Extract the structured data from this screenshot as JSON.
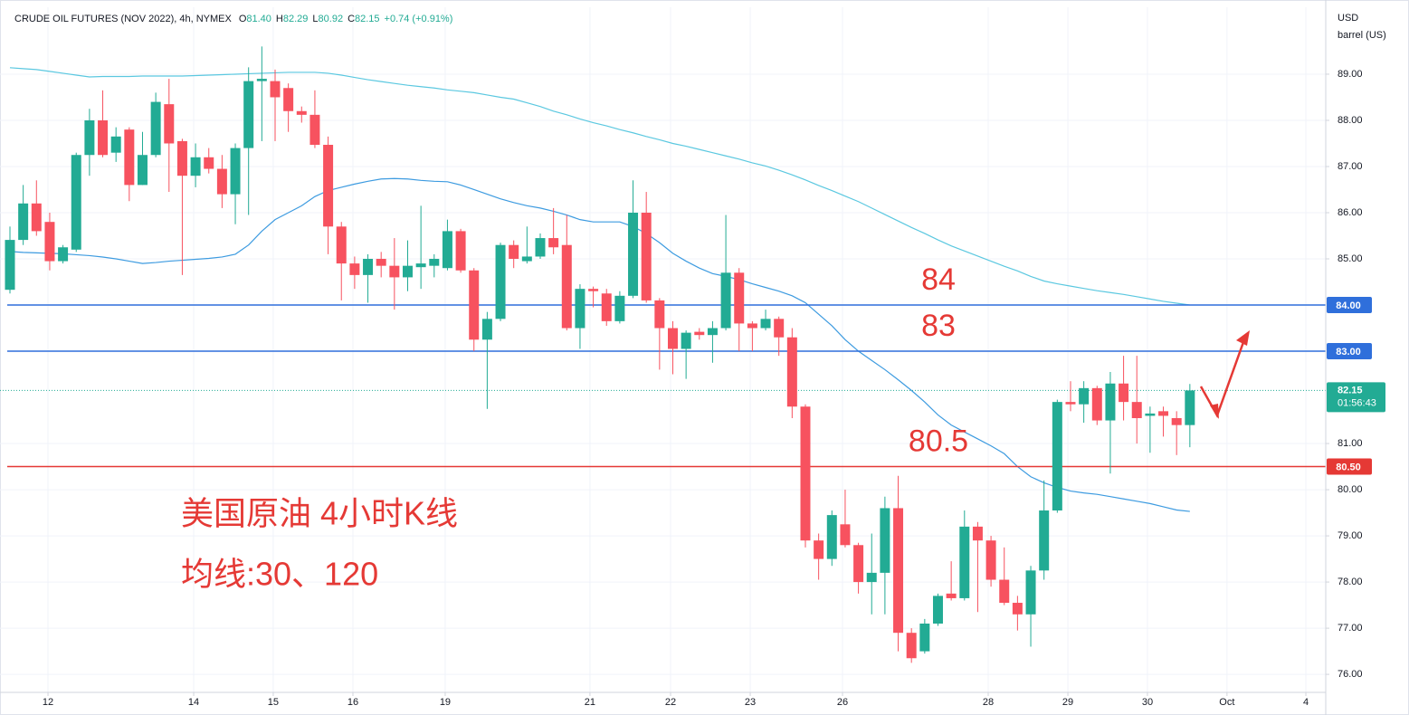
{
  "chart_data": {
    "type": "candlestick",
    "title": "CRUDE OIL FUTURES (NOV 2022), 4h, NYMEX",
    "ohlc_legend": [
      {
        "label": "O",
        "value": "81.40"
      },
      {
        "label": "H",
        "value": "82.29"
      },
      {
        "label": "L",
        "value": "80.92"
      },
      {
        "label": "C",
        "value": "82.15"
      }
    ],
    "change": "+0.74 (+0.91%)",
    "currency": "USD",
    "unit": "barrel (US)",
    "up_color": "#22ab94",
    "down_color": "#f7525f",
    "open": [
      84.33,
      85.41,
      86.2,
      85.8,
      84.95,
      85.2,
      87.25,
      88.0,
      87.3,
      87.8,
      86.6,
      87.25,
      88.35,
      87.55,
      86.8,
      87.2,
      86.95,
      86.4,
      87.4,
      88.85,
      88.85,
      88.7,
      88.2,
      88.12,
      87.47,
      85.7,
      84.9,
      84.65,
      85.0,
      84.85,
      84.6,
      84.82,
      84.85,
      84.8,
      85.6,
      84.75,
      83.25,
      83.7,
      85.3,
      84.95,
      85.05,
      85.45,
      85.3,
      83.5,
      84.35,
      84.25,
      83.65,
      84.2,
      86.0,
      84.1,
      83.5,
      83.05,
      83.42,
      83.35,
      83.5,
      84.7,
      83.6,
      83.5,
      83.7,
      83.3,
      81.8,
      78.9,
      78.5,
      79.25,
      78.8,
      78.0,
      78.2,
      79.6,
      76.9,
      76.5,
      77.1,
      77.75,
      77.65,
      79.2,
      78.9,
      78.05,
      77.55,
      77.3,
      78.25,
      79.55,
      81.9,
      81.85,
      82.2,
      81.5,
      82.3,
      81.9,
      81.6,
      81.7,
      81.55,
      81.4
    ],
    "high": [
      85.7,
      86.6,
      86.7,
      86.0,
      85.3,
      87.3,
      88.25,
      88.65,
      87.85,
      87.85,
      87.75,
      88.6,
      88.9,
      87.6,
      87.5,
      87.4,
      87.25,
      87.5,
      89.15,
      89.6,
      89.1,
      88.8,
      88.3,
      88.65,
      87.65,
      85.8,
      85.05,
      85.1,
      85.15,
      85.45,
      85.4,
      86.15,
      85.1,
      85.85,
      85.65,
      84.8,
      83.85,
      85.35,
      85.4,
      85.7,
      85.55,
      86.1,
      85.95,
      84.45,
      84.4,
      84.35,
      84.3,
      86.7,
      86.45,
      84.15,
      83.65,
      83.45,
      83.5,
      83.65,
      85.95,
      84.8,
      83.65,
      83.9,
      83.75,
      83.5,
      81.85,
      79.05,
      79.55,
      80.0,
      78.85,
      79.05,
      79.85,
      80.3,
      77.0,
      77.2,
      77.75,
      78.45,
      79.55,
      79.3,
      79.0,
      78.75,
      77.7,
      78.35,
      80.2,
      81.95,
      82.35,
      82.35,
      82.25,
      82.55,
      82.9,
      82.9,
      81.8,
      81.8,
      81.7,
      82.29
    ],
    "low": [
      84.25,
      85.3,
      85.5,
      84.75,
      84.9,
      85.15,
      86.8,
      87.2,
      87.1,
      86.25,
      86.6,
      87.2,
      86.45,
      84.65,
      86.55,
      86.85,
      86.1,
      85.75,
      85.95,
      87.55,
      87.55,
      87.75,
      87.95,
      87.4,
      85.1,
      84.1,
      84.35,
      84.05,
      84.6,
      83.9,
      84.3,
      84.35,
      84.6,
      84.75,
      84.7,
      83.0,
      81.75,
      83.65,
      84.8,
      84.9,
      85.0,
      85.1,
      83.45,
      83.05,
      83.95,
      83.55,
      83.6,
      84.15,
      84.05,
      82.6,
      82.5,
      82.4,
      83.25,
      82.75,
      83.45,
      83.0,
      83.0,
      83.45,
      82.9,
      81.55,
      78.75,
      78.05,
      78.35,
      78.75,
      77.75,
      77.3,
      77.3,
      76.5,
      76.25,
      76.45,
      77.05,
      77.6,
      77.6,
      77.35,
      77.9,
      77.5,
      76.95,
      76.6,
      78.05,
      79.5,
      81.7,
      81.45,
      81.4,
      80.35,
      81.5,
      81.0,
      80.8,
      81.15,
      80.75,
      80.92
    ],
    "close": [
      85.41,
      86.2,
      85.6,
      84.95,
      85.25,
      87.25,
      88.0,
      87.25,
      87.65,
      86.6,
      87.25,
      88.4,
      87.5,
      86.8,
      87.2,
      86.95,
      86.4,
      87.4,
      88.85,
      88.9,
      88.5,
      88.2,
      88.12,
      87.47,
      85.7,
      84.9,
      84.65,
      85.0,
      84.85,
      84.6,
      84.85,
      84.9,
      85.0,
      85.6,
      84.75,
      83.25,
      83.7,
      85.3,
      85.0,
      85.05,
      85.45,
      85.25,
      83.5,
      84.35,
      84.3,
      83.65,
      84.2,
      86.0,
      84.1,
      83.5,
      83.05,
      83.4,
      83.35,
      83.5,
      84.7,
      83.6,
      83.5,
      83.7,
      83.3,
      81.8,
      78.9,
      78.5,
      79.45,
      78.8,
      78.0,
      78.2,
      79.6,
      76.9,
      76.35,
      77.1,
      77.7,
      77.65,
      79.2,
      78.9,
      78.05,
      77.55,
      77.3,
      78.25,
      79.55,
      81.9,
      81.85,
      82.2,
      81.5,
      82.3,
      81.9,
      81.55,
      81.65,
      81.6,
      81.4,
      82.15
    ],
    "moving_averages": [
      {
        "color": "#5bc8e0",
        "values": [
          89.14,
          89.12,
          89.1,
          89.06,
          89.02,
          88.98,
          88.94,
          88.95,
          88.95,
          88.95,
          88.96,
          88.96,
          88.96,
          88.96,
          88.97,
          88.98,
          88.99,
          89.0,
          89.01,
          89.02,
          89.03,
          89.04,
          89.04,
          89.04,
          89.02,
          88.98,
          88.93,
          88.88,
          88.84,
          88.8,
          88.76,
          88.73,
          88.7,
          88.66,
          88.63,
          88.6,
          88.55,
          88.5,
          88.46,
          88.38,
          88.3,
          88.2,
          88.12,
          88.03,
          87.95,
          87.88,
          87.8,
          87.73,
          87.65,
          87.58,
          87.5,
          87.44,
          87.37,
          87.3,
          87.23,
          87.16,
          87.08,
          87.01,
          86.92,
          86.82,
          86.71,
          86.59,
          86.48,
          86.36,
          86.24,
          86.1,
          85.96,
          85.82,
          85.68,
          85.55,
          85.41,
          85.28,
          85.17,
          85.06,
          84.95,
          84.84,
          84.74,
          84.62,
          84.52,
          84.46,
          84.41,
          84.36,
          84.31,
          84.27,
          84.23,
          84.18,
          84.13,
          84.08,
          84.04,
          84.0
        ]
      },
      {
        "color": "#3d9be0",
        "values": [
          85.16,
          85.14,
          85.13,
          85.12,
          85.11,
          85.09,
          85.07,
          85.04,
          85.0,
          84.95,
          84.9,
          84.92,
          84.95,
          84.97,
          84.99,
          85.01,
          85.04,
          85.1,
          85.3,
          85.6,
          85.85,
          86.0,
          86.15,
          86.35,
          86.48,
          86.55,
          86.62,
          86.68,
          86.73,
          86.74,
          86.73,
          86.7,
          86.68,
          86.67,
          86.6,
          86.5,
          86.4,
          86.3,
          86.22,
          86.15,
          86.1,
          86.03,
          85.95,
          85.85,
          85.8,
          85.8,
          85.8,
          85.7,
          85.55,
          85.35,
          85.12,
          84.95,
          84.8,
          84.68,
          84.62,
          84.55,
          84.46,
          84.38,
          84.3,
          84.2,
          84.05,
          83.8,
          83.55,
          83.25,
          83.0,
          82.8,
          82.6,
          82.38,
          82.15,
          81.9,
          81.62,
          81.4,
          81.25,
          81.1,
          80.95,
          80.78,
          80.5,
          80.28,
          80.15,
          80.05,
          79.97,
          79.93,
          79.9,
          79.85,
          79.8,
          79.75,
          79.7,
          79.63,
          79.56,
          79.53
        ]
      }
    ],
    "hlines": [
      {
        "value": 84,
        "label": "84.00",
        "annotation": "84",
        "color": "#2f6fdb"
      },
      {
        "value": 83,
        "label": "83.00",
        "annotation": "83",
        "color": "#2f6fdb"
      },
      {
        "value": 80.5,
        "label": "80.50",
        "annotation": "80.5",
        "color": "#e53935"
      }
    ],
    "last_price": {
      "value": 82.15,
      "label": "82.15",
      "countdown": "01:56:43",
      "color": "#22ab94"
    },
    "annotations": [
      "美国原油 4小时K线",
      "均线:30、120"
    ],
    "ylim": [
      75.61,
      90.45
    ],
    "yticks": [
      {
        "value": 76,
        "label": "76.00"
      },
      {
        "value": 77,
        "label": "77.00"
      },
      {
        "value": 78,
        "label": "78.00"
      },
      {
        "value": 79,
        "label": "79.00"
      },
      {
        "value": 80,
        "label": "80.00"
      },
      {
        "value": 81,
        "label": "81.00"
      },
      {
        "value": 85,
        "label": "85.00"
      },
      {
        "value": 86,
        "label": "86.00"
      },
      {
        "value": 87,
        "label": "87.00"
      },
      {
        "value": 88,
        "label": "88.00"
      },
      {
        "value": 89,
        "label": "89.00"
      }
    ],
    "xlim": [
      -0.75,
      99.25
    ],
    "xticks": [
      {
        "value": 2.87,
        "label": "12"
      },
      {
        "value": 13.86,
        "label": "14"
      },
      {
        "value": 19.86,
        "label": "15"
      },
      {
        "value": 25.87,
        "label": "16"
      },
      {
        "value": 32.83,
        "label": "19"
      },
      {
        "value": 43.75,
        "label": "21"
      },
      {
        "value": 49.83,
        "label": "22"
      },
      {
        "value": 55.84,
        "label": "23"
      },
      {
        "value": 62.8,
        "label": "26"
      },
      {
        "value": 73.79,
        "label": "28"
      },
      {
        "value": 79.8,
        "label": "29"
      },
      {
        "value": 85.8,
        "label": "30"
      },
      {
        "value": 91.8,
        "label": "Oct"
      },
      {
        "value": 97.75,
        "label": "4"
      }
    ],
    "grid": true
  }
}
